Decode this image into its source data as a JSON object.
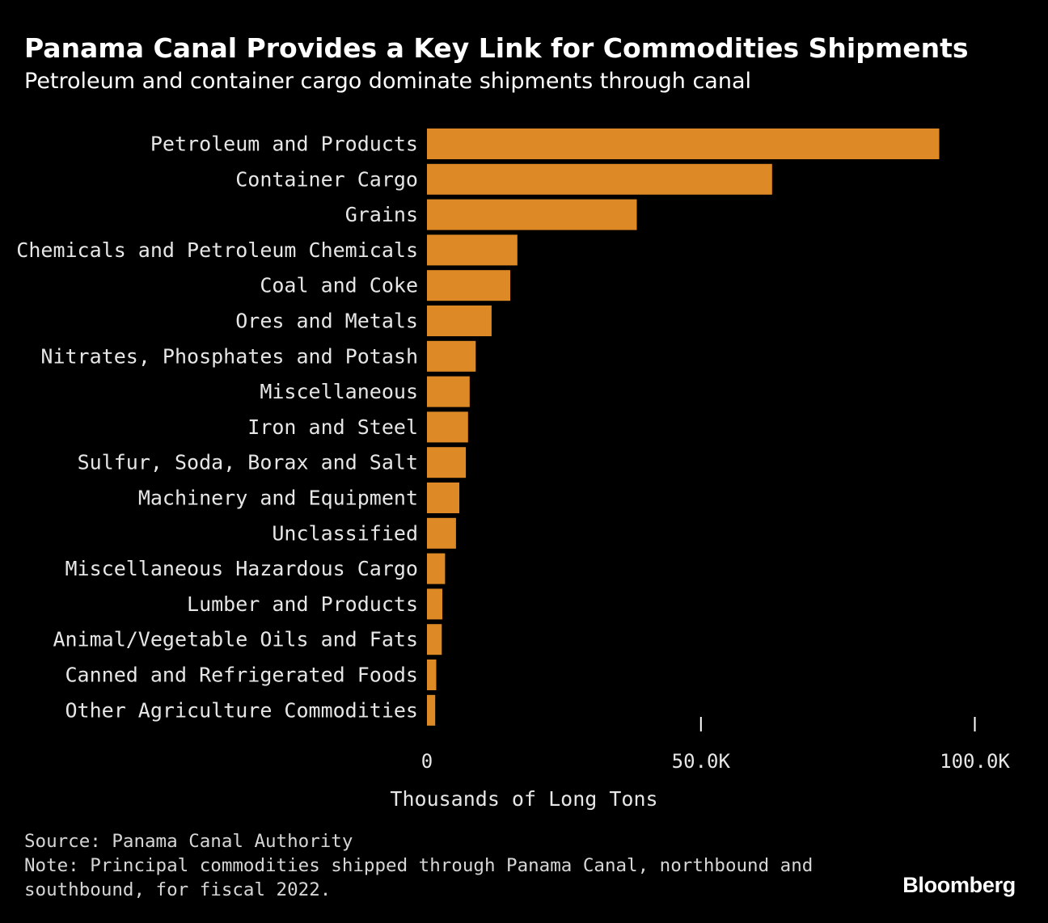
{
  "header": {
    "title": "Panama Canal Provides a Key Link for Commodities Shipments",
    "subtitle": "Petroleum and container cargo dominate shipments through canal"
  },
  "footer": {
    "source": "Source: Panama Canal Authority",
    "note_line1": "Note: Principal commodities shipped through Panama Canal, northbound and",
    "note_line2": "southbound, for fiscal 2022.",
    "brand": "Bloomberg"
  },
  "colors": {
    "background": "#000000",
    "bar": "#dd8925",
    "label": "#e6e6e6",
    "tick": "#ffffff"
  },
  "chart_data": {
    "type": "bar",
    "orientation": "horizontal",
    "title": "Panama Canal Provides a Key Link for Commodities Shipments",
    "subtitle": "Petroleum and container cargo dominate shipments through canal",
    "xlabel": "Thousands of Long Tons",
    "ylabel": "",
    "xlim": [
      0,
      104000
    ],
    "ticks": [
      {
        "value": 0,
        "label": "0"
      },
      {
        "value": 50000,
        "label": "50.0K"
      },
      {
        "value": 100000,
        "label": "100.0K"
      }
    ],
    "categories": [
      "Petroleum and Products",
      "Container Cargo",
      "Grains",
      "Chemicals and Petroleum Chemicals",
      "Coal and Coke",
      "Ores and Metals",
      "Nitrates, Phosphates and Potash",
      "Miscellaneous",
      "Iron and Steel",
      "Sulfur, Soda, Borax and Salt",
      "Machinery and Equipment",
      "Unclassified",
      "Miscellaneous Hazardous Cargo",
      "Lumber and Products",
      "Animal/Vegetable Oils and Fats",
      "Canned and Refrigerated Foods",
      "Other Agriculture Commodities"
    ],
    "values": [
      93500,
      63000,
      38300,
      16500,
      15200,
      11800,
      8900,
      7800,
      7500,
      7100,
      5900,
      5300,
      3300,
      2800,
      2700,
      1700,
      1500
    ],
    "grid": false,
    "legend": "none"
  }
}
